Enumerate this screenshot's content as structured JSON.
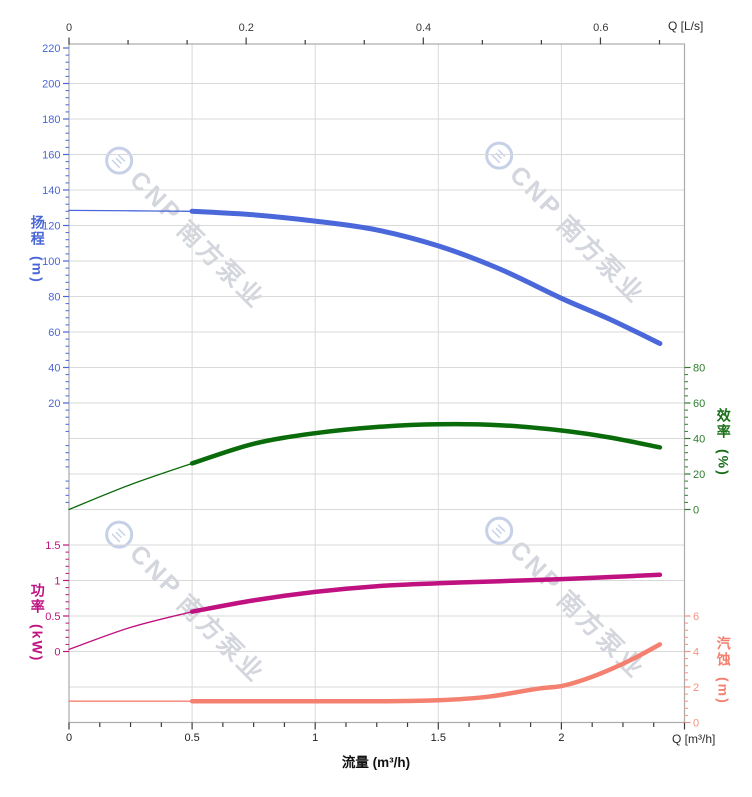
{
  "watermark": {
    "logo_glyph": "三",
    "brand": "CNP",
    "brand_cjk": "南方泵业",
    "color": "#d3d6dd",
    "logo_color": "#c6d1e8"
  },
  "colors": {
    "background": "#ffffff",
    "grid": "#d9d9d9",
    "border": "#ababab",
    "axis_dark": "#3a3a3a",
    "head": "#4a68d9",
    "efficiency": "#0a6b0a",
    "power": "#bf1280",
    "npsh": "#f48170"
  },
  "chart_data": {
    "type": "line",
    "title": "",
    "x_bottom": {
      "title": "流量 (m³/h)",
      "corner_label": "Q [m³/h]",
      "min": 0,
      "max": 2.5,
      "major_tick_values": [
        0,
        0.5,
        1,
        1.5,
        2
      ],
      "major_tick_labels": [
        "0",
        "0.5",
        "1",
        "1.5",
        "2"
      ],
      "minor_step": 0.125,
      "grid_values": [
        0.5,
        1,
        1.5,
        2
      ]
    },
    "x_top": {
      "title": "Q [L/s]",
      "major_tick_values_Ls": [
        0,
        0.2,
        0.4,
        0.6
      ],
      "major_tick_labels": [
        "0",
        "0.2",
        "0.4",
        "0.6"
      ],
      "minor_step_Ls": 0.0667,
      "m3h_per_Ls": 3.6
    },
    "y_axes": [
      {
        "id": "head",
        "title": "扬程",
        "unit": "(m)",
        "side": "left",
        "color": "#4a67d6",
        "tick_values": [
          220,
          200,
          180,
          160,
          140,
          120,
          100,
          80,
          60,
          40,
          20
        ],
        "tick_labels": [
          "220",
          "200",
          "180",
          "160",
          "140",
          "120",
          "100",
          "80",
          "60",
          "40",
          "20"
        ],
        "minor_step": 4
      },
      {
        "id": "eff",
        "title": "效率",
        "unit": "(%)",
        "side": "right",
        "color": "#2d7d2d",
        "tick_values": [
          80,
          60,
          40,
          20,
          0
        ],
        "tick_labels": [
          "80",
          "60",
          "40",
          "20",
          "0"
        ],
        "minor_step": 4
      },
      {
        "id": "power",
        "title": "功率",
        "unit": "(kW)",
        "side": "left",
        "color": "#bf1280",
        "tick_values": [
          1.5,
          1,
          0.5,
          0
        ],
        "tick_labels": [
          "1.5",
          "1",
          "0.5",
          "0"
        ],
        "minor_step": 0.1
      },
      {
        "id": "npsh",
        "title": "汽蚀",
        "unit": "(m)",
        "side": "right",
        "color": "#f5917f",
        "tick_values": [
          6,
          4,
          2,
          0
        ],
        "tick_labels": [
          "6",
          "4",
          "2",
          "0"
        ],
        "minor_step": 0.4
      }
    ],
    "series": [
      {
        "id": "head-curve",
        "name": "扬程",
        "axis": "head",
        "color": "#4a68d9",
        "rated_split_q": 0.5,
        "points": [
          [
            0,
            128.5
          ],
          [
            0.25,
            128.3
          ],
          [
            0.5,
            128
          ],
          [
            0.75,
            126
          ],
          [
            1,
            122.5
          ],
          [
            1.25,
            117.5
          ],
          [
            1.5,
            108.5
          ],
          [
            1.75,
            95.5
          ],
          [
            2,
            79
          ],
          [
            2.2,
            67
          ],
          [
            2.4,
            53.5
          ]
        ]
      },
      {
        "id": "eff-curve",
        "name": "效率",
        "axis": "eff",
        "color": "#0a6b0a",
        "rated_split_q": 0.5,
        "points": [
          [
            0,
            0
          ],
          [
            0.25,
            14
          ],
          [
            0.5,
            26
          ],
          [
            0.75,
            37
          ],
          [
            1,
            43
          ],
          [
            1.25,
            46.5
          ],
          [
            1.5,
            48
          ],
          [
            1.75,
            47.5
          ],
          [
            2,
            44.5
          ],
          [
            2.2,
            40.5
          ],
          [
            2.4,
            35
          ]
        ]
      },
      {
        "id": "power-curve",
        "name": "功率",
        "axis": "power",
        "color": "#bf1280",
        "rated_split_q": 0.5,
        "points": [
          [
            0,
            0.03
          ],
          [
            0.25,
            0.34
          ],
          [
            0.5,
            0.56
          ],
          [
            0.75,
            0.72
          ],
          [
            1,
            0.84
          ],
          [
            1.25,
            0.92
          ],
          [
            1.5,
            0.96
          ],
          [
            1.75,
            0.99
          ],
          [
            2,
            1.02
          ],
          [
            2.2,
            1.05
          ],
          [
            2.4,
            1.08
          ]
        ]
      },
      {
        "id": "npsh-curve",
        "name": "汽蚀",
        "axis": "npsh",
        "color": "#f48170",
        "rated_split_q": 0.5,
        "points": [
          [
            0,
            1.2
          ],
          [
            0.5,
            1.2
          ],
          [
            1,
            1.2
          ],
          [
            1.3,
            1.2
          ],
          [
            1.5,
            1.25
          ],
          [
            1.7,
            1.45
          ],
          [
            1.9,
            1.9
          ],
          [
            2,
            2.05
          ],
          [
            2.1,
            2.45
          ],
          [
            2.2,
            3.0
          ],
          [
            2.3,
            3.65
          ],
          [
            2.4,
            4.4
          ]
        ]
      }
    ]
  }
}
